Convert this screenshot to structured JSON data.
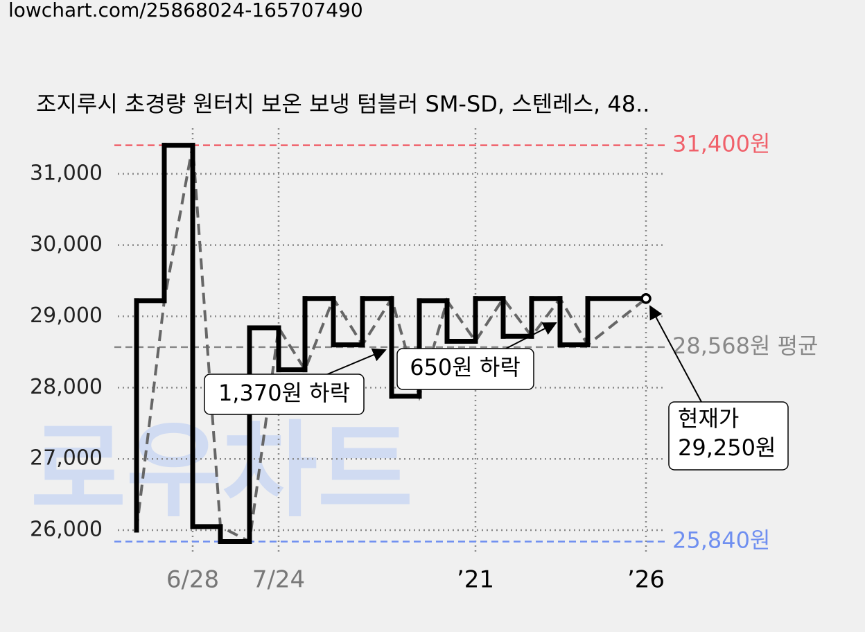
{
  "url": "lowchart.com/25868024-165707490",
  "watermark": "로우차트",
  "chart_data": {
    "type": "line",
    "title": "조지루시 초경량 원터치 보온 보냉 텀블러 SM-SD, 스텐레스, 48..",
    "step": true,
    "grid": true,
    "x": [
      3.2,
      7.2,
      11.3,
      15.3,
      19.5,
      23.7,
      27.5,
      31.6,
      35.8,
      40,
      44,
      48,
      52.1,
      56.1,
      60.2,
      64.3,
      68.3,
      76.7
    ],
    "series": [
      {
        "color": "#000000",
        "trend_color": "#666666",
        "values": [
          26000,
          29220,
          31400,
          26050,
          25840,
          28840,
          28250,
          29250,
          28600,
          29250,
          27880,
          29220,
          28650,
          29250,
          28720,
          29250,
          28600,
          29250
        ]
      }
    ],
    "xlim": [
      0,
      80
    ],
    "xticks": [
      {
        "value": 11.3,
        "label": "6/28"
      },
      {
        "value": 23.7,
        "label": "7/24"
      },
      {
        "value": 52.1,
        "label": "’21"
      },
      {
        "value": 76.7,
        "label": "’26"
      }
    ],
    "xtick_colors": [
      "#777777",
      "#777777",
      "#000000",
      "#000000"
    ],
    "ylim": [
      25660,
      31640
    ],
    "yticks": [
      {
        "value": 26000,
        "label": "26,000"
      },
      {
        "value": 27000,
        "label": "27,000"
      },
      {
        "value": 28000,
        "label": "28,000"
      },
      {
        "value": 29000,
        "label": "29,000"
      },
      {
        "value": 30000,
        "label": "30,000"
      },
      {
        "value": 31000,
        "label": "31,000"
      }
    ],
    "ref_lines": [
      {
        "value": 31400,
        "label": "31,400원",
        "color": "#f0606a"
      },
      {
        "value": 28568,
        "label": "28,568원 평균",
        "color": "#888888"
      },
      {
        "value": 25840,
        "label": "25,840원",
        "color": "#6f8ff0"
      }
    ],
    "annotations": [
      {
        "text": "1,370원 하락"
      },
      {
        "text": "650원 하락"
      },
      {
        "lines": [
          "현재가",
          "29,250원"
        ]
      }
    ]
  }
}
